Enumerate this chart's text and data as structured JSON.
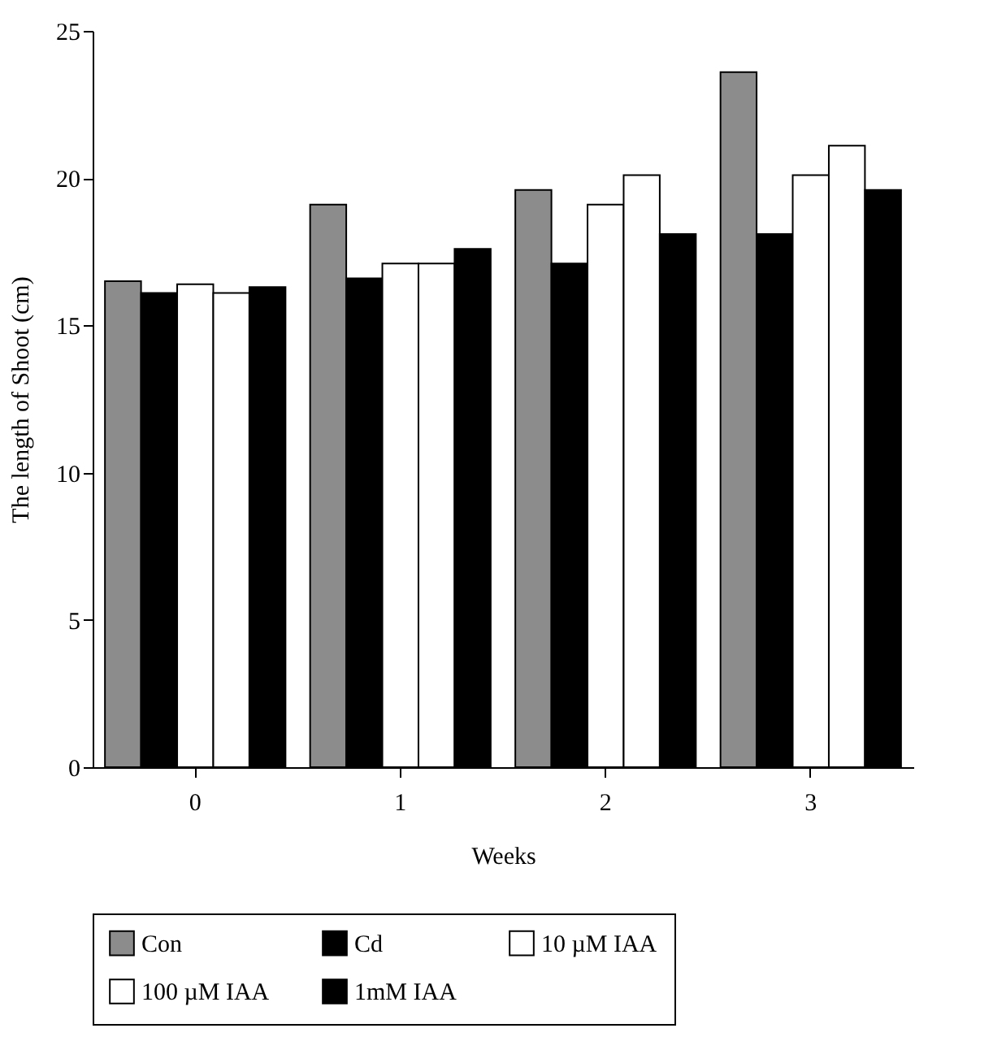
{
  "chart_data": {
    "type": "bar",
    "xlabel": "Weeks",
    "ylabel": "The length of Shoot (cm)",
    "categories": [
      "0",
      "1",
      "2",
      "3"
    ],
    "series": [
      {
        "name": "Con",
        "color": "#8c8c8c",
        "values": [
          16.5,
          19.1,
          19.6,
          23.6
        ]
      },
      {
        "name": "Cd",
        "color": "#000000",
        "values": [
          16.1,
          16.6,
          17.1,
          18.1
        ]
      },
      {
        "name": "10 µM IAA",
        "color": "#ffffff",
        "values": [
          16.4,
          17.1,
          19.1,
          20.1
        ]
      },
      {
        "name": "100 µM IAA",
        "color": "#ffffff",
        "values": [
          16.1,
          17.1,
          20.1,
          21.1
        ]
      },
      {
        "name": "1mM IAA",
        "color": "#000000",
        "values": [
          16.3,
          17.6,
          18.1,
          19.6
        ]
      }
    ],
    "ylim": [
      0,
      25
    ],
    "yticks": [
      0,
      5,
      10,
      15,
      20,
      25
    ],
    "grid": false,
    "legend": "bottom"
  }
}
